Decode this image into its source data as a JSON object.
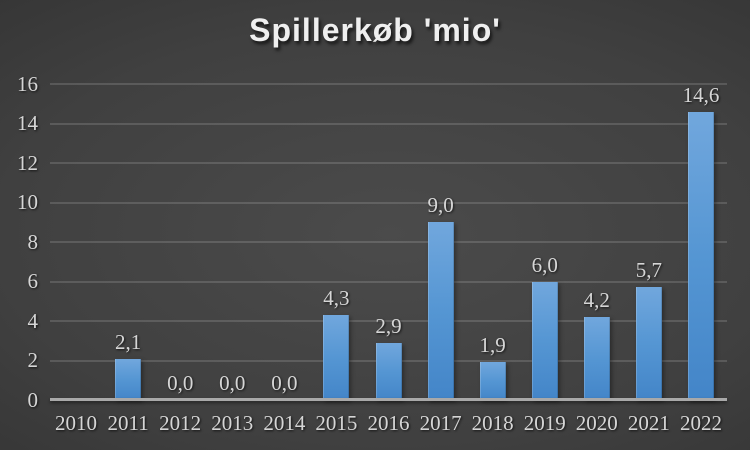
{
  "chart_data": {
    "type": "bar",
    "title": "Spillerkøb 'mio'",
    "categories": [
      "2010",
      "2011",
      "2012",
      "2013",
      "2014",
      "2015",
      "2016",
      "2017",
      "2018",
      "2019",
      "2020",
      "2021",
      "2022"
    ],
    "values": [
      null,
      2.1,
      0,
      0,
      0,
      4.3,
      2.9,
      9.0,
      1.9,
      6.0,
      4.2,
      5.7,
      14.6
    ],
    "value_labels": [
      "",
      "2,1",
      "0,0",
      "0,0",
      "0,0",
      "4,3",
      "2,9",
      "9,0",
      "1,9",
      "6,0",
      "4,2",
      "5,7",
      "14,6"
    ],
    "xlabel": "",
    "ylabel": "",
    "ylim": [
      0,
      16
    ],
    "yticks": [
      "0",
      "2",
      "4",
      "6",
      "8",
      "10",
      "12",
      "14",
      "16"
    ],
    "ytick_step": 2,
    "grid": "horizontal",
    "legend": "none",
    "decimal_separator": ",",
    "colors": {
      "bar_top": "#71a7dd",
      "bar_bottom": "#4385c8",
      "background_center": "#4b4b4b",
      "background_edge": "#232324",
      "gridline": "#565656",
      "axis_line": "#a9a9a9",
      "tick_label": "#d6d6d6",
      "data_label": "#d6d6d6",
      "title": "#efefef"
    }
  }
}
